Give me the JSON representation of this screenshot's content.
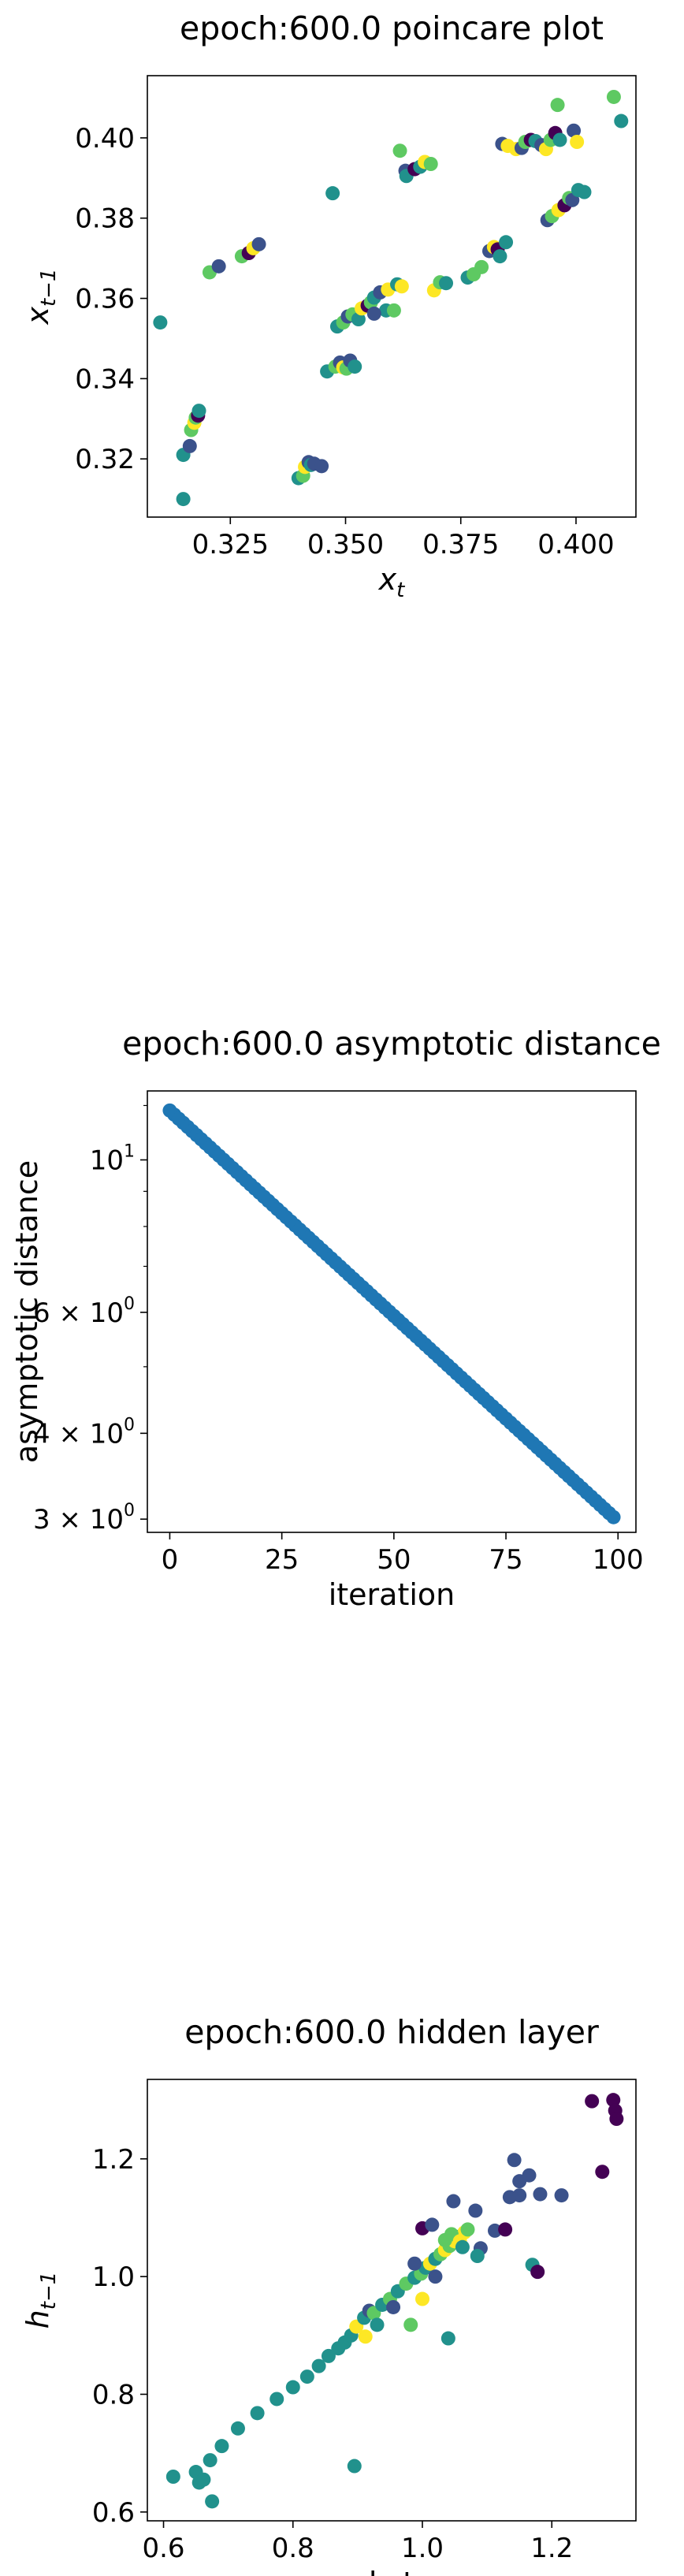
{
  "colors": {
    "viridis": [
      "#440154",
      "#3b528b",
      "#21918c",
      "#5ec962",
      "#fde725"
    ],
    "asymptotic": "#1f77b4"
  },
  "chart_data": [
    {
      "type": "scatter",
      "title": "epoch:600.0 poincare plot",
      "xlabel": "x_t",
      "ylabel": "x_{t-1}",
      "xlim": [
        0.307,
        0.413
      ],
      "ylim": [
        0.3055,
        0.4155
      ],
      "xticks": [
        0.325,
        0.35,
        0.375,
        0.4
      ],
      "xtick_labels": [
        "0.325",
        "0.350",
        "0.375",
        "0.400"
      ],
      "yticks": [
        0.32,
        0.34,
        0.36,
        0.38,
        0.4
      ],
      "ytick_labels": [
        "0.32",
        "0.34",
        "0.36",
        "0.38",
        "0.40"
      ],
      "points": [
        {
          "x": 0.3098,
          "y": 0.354,
          "c": 2
        },
        {
          "x": 0.3148,
          "y": 0.31,
          "c": 2
        },
        {
          "x": 0.3148,
          "y": 0.321,
          "c": 2
        },
        {
          "x": 0.3162,
          "y": 0.3232,
          "c": 1
        },
        {
          "x": 0.3165,
          "y": 0.3272,
          "c": 3
        },
        {
          "x": 0.3172,
          "y": 0.329,
          "c": 4
        },
        {
          "x": 0.3175,
          "y": 0.3303,
          "c": 3
        },
        {
          "x": 0.318,
          "y": 0.3308,
          "c": 0
        },
        {
          "x": 0.3182,
          "y": 0.332,
          "c": 2
        },
        {
          "x": 0.3205,
          "y": 0.3665,
          "c": 3
        },
        {
          "x": 0.3225,
          "y": 0.368,
          "c": 1
        },
        {
          "x": 0.3275,
          "y": 0.3705,
          "c": 3
        },
        {
          "x": 0.329,
          "y": 0.3713,
          "c": 0
        },
        {
          "x": 0.33,
          "y": 0.3725,
          "c": 4
        },
        {
          "x": 0.3312,
          "y": 0.3735,
          "c": 1
        },
        {
          "x": 0.3398,
          "y": 0.3152,
          "c": 2
        },
        {
          "x": 0.3408,
          "y": 0.3158,
          "c": 3
        },
        {
          "x": 0.3412,
          "y": 0.318,
          "c": 4
        },
        {
          "x": 0.342,
          "y": 0.3192,
          "c": 1
        },
        {
          "x": 0.3425,
          "y": 0.3185,
          "c": 2
        },
        {
          "x": 0.3432,
          "y": 0.3188,
          "c": 1
        },
        {
          "x": 0.3448,
          "y": 0.3182,
          "c": 1
        },
        {
          "x": 0.346,
          "y": 0.3418,
          "c": 2
        },
        {
          "x": 0.3478,
          "y": 0.343,
          "c": 3
        },
        {
          "x": 0.3488,
          "y": 0.344,
          "c": 1
        },
        {
          "x": 0.3495,
          "y": 0.3428,
          "c": 4
        },
        {
          "x": 0.3502,
          "y": 0.3425,
          "c": 3
        },
        {
          "x": 0.351,
          "y": 0.3445,
          "c": 1
        },
        {
          "x": 0.352,
          "y": 0.343,
          "c": 2
        },
        {
          "x": 0.3472,
          "y": 0.3862,
          "c": 2
        },
        {
          "x": 0.3482,
          "y": 0.353,
          "c": 2
        },
        {
          "x": 0.3495,
          "y": 0.354,
          "c": 3
        },
        {
          "x": 0.3505,
          "y": 0.3555,
          "c": 1
        },
        {
          "x": 0.3515,
          "y": 0.356,
          "c": 3
        },
        {
          "x": 0.3528,
          "y": 0.3548,
          "c": 2
        },
        {
          "x": 0.3535,
          "y": 0.3575,
          "c": 4
        },
        {
          "x": 0.3548,
          "y": 0.3582,
          "c": 0
        },
        {
          "x": 0.3555,
          "y": 0.359,
          "c": 3
        },
        {
          "x": 0.3562,
          "y": 0.3602,
          "c": 2
        },
        {
          "x": 0.3575,
          "y": 0.3615,
          "c": 1
        },
        {
          "x": 0.3588,
          "y": 0.357,
          "c": 2
        },
        {
          "x": 0.3592,
          "y": 0.3622,
          "c": 4
        },
        {
          "x": 0.3605,
          "y": 0.357,
          "c": 3
        },
        {
          "x": 0.3612,
          "y": 0.3635,
          "c": 2
        },
        {
          "x": 0.3622,
          "y": 0.363,
          "c": 4
        },
        {
          "x": 0.3562,
          "y": 0.3562,
          "c": 1
        },
        {
          "x": 0.3618,
          "y": 0.3968,
          "c": 3
        },
        {
          "x": 0.363,
          "y": 0.3918,
          "c": 1
        },
        {
          "x": 0.3632,
          "y": 0.3905,
          "c": 2
        },
        {
          "x": 0.365,
          "y": 0.3922,
          "c": 0
        },
        {
          "x": 0.3662,
          "y": 0.3928,
          "c": 2
        },
        {
          "x": 0.3672,
          "y": 0.394,
          "c": 4
        },
        {
          "x": 0.3685,
          "y": 0.3935,
          "c": 3
        },
        {
          "x": 0.3692,
          "y": 0.362,
          "c": 4
        },
        {
          "x": 0.3705,
          "y": 0.364,
          "c": 3
        },
        {
          "x": 0.3718,
          "y": 0.3638,
          "c": 2
        },
        {
          "x": 0.3765,
          "y": 0.3652,
          "c": 2
        },
        {
          "x": 0.3778,
          "y": 0.366,
          "c": 3
        },
        {
          "x": 0.3795,
          "y": 0.3678,
          "c": 3
        },
        {
          "x": 0.3812,
          "y": 0.3718,
          "c": 1
        },
        {
          "x": 0.3822,
          "y": 0.3728,
          "c": 4
        },
        {
          "x": 0.383,
          "y": 0.3722,
          "c": 0
        },
        {
          "x": 0.3848,
          "y": 0.374,
          "c": 2
        },
        {
          "x": 0.3835,
          "y": 0.3705,
          "c": 2
        },
        {
          "x": 0.384,
          "y": 0.3985,
          "c": 1
        },
        {
          "x": 0.3852,
          "y": 0.398,
          "c": 4
        },
        {
          "x": 0.387,
          "y": 0.3972,
          "c": 4
        },
        {
          "x": 0.3882,
          "y": 0.3975,
          "c": 1
        },
        {
          "x": 0.389,
          "y": 0.399,
          "c": 3
        },
        {
          "x": 0.3902,
          "y": 0.3995,
          "c": 0
        },
        {
          "x": 0.3912,
          "y": 0.3992,
          "c": 2
        },
        {
          "x": 0.3925,
          "y": 0.3982,
          "c": 1
        },
        {
          "x": 0.3935,
          "y": 0.3972,
          "c": 4
        },
        {
          "x": 0.3945,
          "y": 0.3995,
          "c": 3
        },
        {
          "x": 0.3955,
          "y": 0.4012,
          "c": 0
        },
        {
          "x": 0.3965,
          "y": 0.3995,
          "c": 2
        },
        {
          "x": 0.396,
          "y": 0.4082,
          "c": 3
        },
        {
          "x": 0.3938,
          "y": 0.3795,
          "c": 1
        },
        {
          "x": 0.3948,
          "y": 0.3805,
          "c": 3
        },
        {
          "x": 0.3962,
          "y": 0.382,
          "c": 4
        },
        {
          "x": 0.3975,
          "y": 0.3832,
          "c": 0
        },
        {
          "x": 0.3985,
          "y": 0.385,
          "c": 3
        },
        {
          "x": 0.3992,
          "y": 0.3845,
          "c": 1
        },
        {
          "x": 0.4005,
          "y": 0.387,
          "c": 2
        },
        {
          "x": 0.4018,
          "y": 0.3865,
          "c": 2
        },
        {
          "x": 0.3995,
          "y": 0.4018,
          "c": 1
        },
        {
          "x": 0.4002,
          "y": 0.399,
          "c": 4
        },
        {
          "x": 0.4082,
          "y": 0.4102,
          "c": 3
        },
        {
          "x": 0.4098,
          "y": 0.4042,
          "c": 2
        }
      ]
    },
    {
      "type": "scatter",
      "title": "epoch:600.0 asymptotic distance",
      "xlabel": "iteration",
      "ylabel": "asymptotic distance",
      "yscale": "log",
      "x_start": 0,
      "x_end": 99,
      "y_start": 11.8,
      "y_end": 3.02,
      "xlim": [
        -5,
        104
      ],
      "ylim": [
        2.87,
        12.6
      ],
      "xticks": [
        0,
        25,
        50,
        75,
        100
      ],
      "xtick_labels": [
        "0",
        "25",
        "50",
        "75",
        "100"
      ],
      "yticks": [
        10,
        6,
        4,
        3
      ],
      "ytick_labels": [
        {
          "base": "10",
          "exp": "1"
        },
        {
          "base": "6 × 10",
          "exp": "0"
        },
        {
          "base": "4 × 10",
          "exp": "0"
        },
        {
          "base": "3 × 10",
          "exp": "0"
        }
      ]
    },
    {
      "type": "scatter",
      "title": "epoch:600.0 hidden layer",
      "xlabel": "h_t",
      "ylabel": "h_{t-1}",
      "xlim": [
        0.575,
        1.33
      ],
      "ylim": [
        0.585,
        1.335
      ],
      "xticks": [
        0.6,
        0.8,
        1.0,
        1.2
      ],
      "xtick_labels": [
        "0.6",
        "0.8",
        "1.0",
        "1.2"
      ],
      "yticks": [
        0.6,
        0.8,
        1.0,
        1.2
      ],
      "ytick_labels": [
        "0.6",
        "0.8",
        "1.0",
        "1.2"
      ],
      "points": [
        {
          "x": 0.615,
          "y": 0.66,
          "c": 2
        },
        {
          "x": 0.65,
          "y": 0.668,
          "c": 2
        },
        {
          "x": 0.655,
          "y": 0.65,
          "c": 2
        },
        {
          "x": 0.662,
          "y": 0.655,
          "c": 2
        },
        {
          "x": 0.672,
          "y": 0.688,
          "c": 2
        },
        {
          "x": 0.675,
          "y": 0.618,
          "c": 2
        },
        {
          "x": 0.69,
          "y": 0.712,
          "c": 2
        },
        {
          "x": 0.715,
          "y": 0.742,
          "c": 2
        },
        {
          "x": 0.745,
          "y": 0.768,
          "c": 2
        },
        {
          "x": 0.775,
          "y": 0.792,
          "c": 2
        },
        {
          "x": 0.8,
          "y": 0.812,
          "c": 2
        },
        {
          "x": 0.822,
          "y": 0.83,
          "c": 2
        },
        {
          "x": 0.84,
          "y": 0.848,
          "c": 2
        },
        {
          "x": 0.855,
          "y": 0.865,
          "c": 2
        },
        {
          "x": 0.87,
          "y": 0.878,
          "c": 2
        },
        {
          "x": 0.88,
          "y": 0.888,
          "c": 2
        },
        {
          "x": 0.89,
          "y": 0.9,
          "c": 2
        },
        {
          "x": 0.895,
          "y": 0.678,
          "c": 2
        },
        {
          "x": 0.898,
          "y": 0.915,
          "c": 4
        },
        {
          "x": 0.91,
          "y": 0.93,
          "c": 2
        },
        {
          "x": 0.912,
          "y": 0.898,
          "c": 4
        },
        {
          "x": 0.918,
          "y": 0.942,
          "c": 1
        },
        {
          "x": 0.925,
          "y": 0.938,
          "c": 3
        },
        {
          "x": 0.93,
          "y": 0.918,
          "c": 2
        },
        {
          "x": 0.938,
          "y": 0.952,
          "c": 2
        },
        {
          "x": 0.95,
          "y": 0.962,
          "c": 3
        },
        {
          "x": 0.962,
          "y": 0.975,
          "c": 2
        },
        {
          "x": 0.975,
          "y": 0.988,
          "c": 3
        },
        {
          "x": 0.982,
          "y": 0.918,
          "c": 3
        },
        {
          "x": 0.988,
          "y": 0.998,
          "c": 2
        },
        {
          "x": 0.998,
          "y": 1.005,
          "c": 3
        },
        {
          "x": 1.005,
          "y": 1.015,
          "c": 2
        },
        {
          "x": 1.012,
          "y": 1.022,
          "c": 4
        },
        {
          "x": 1.02,
          "y": 1.03,
          "c": 2
        },
        {
          "x": 1.028,
          "y": 1.038,
          "c": 3
        },
        {
          "x": 1.035,
          "y": 1.045,
          "c": 4
        },
        {
          "x": 1.042,
          "y": 1.052,
          "c": 3
        },
        {
          "x": 1.05,
          "y": 1.06,
          "c": 4
        },
        {
          "x": 1.058,
          "y": 1.068,
          "c": 2
        },
        {
          "x": 1.065,
          "y": 1.075,
          "c": 4
        },
        {
          "x": 1.07,
          "y": 1.08,
          "c": 3
        },
        {
          "x": 1.0,
          "y": 0.962,
          "c": 4
        },
        {
          "x": 0.955,
          "y": 0.948,
          "c": 1
        },
        {
          "x": 1.02,
          "y": 1.0,
          "c": 1
        },
        {
          "x": 1.04,
          "y": 0.895,
          "c": 2
        },
        {
          "x": 0.988,
          "y": 1.022,
          "c": 1
        },
        {
          "x": 1.0,
          "y": 1.082,
          "c": 0
        },
        {
          "x": 1.015,
          "y": 1.088,
          "c": 1
        },
        {
          "x": 1.048,
          "y": 1.128,
          "c": 1
        },
        {
          "x": 1.082,
          "y": 1.112,
          "c": 1
        },
        {
          "x": 1.09,
          "y": 1.048,
          "c": 1
        },
        {
          "x": 1.085,
          "y": 1.035,
          "c": 2
        },
        {
          "x": 1.112,
          "y": 1.078,
          "c": 1
        },
        {
          "x": 1.128,
          "y": 1.08,
          "c": 0
        },
        {
          "x": 1.135,
          "y": 1.135,
          "c": 1
        },
        {
          "x": 1.142,
          "y": 1.198,
          "c": 1
        },
        {
          "x": 1.15,
          "y": 1.138,
          "c": 1
        },
        {
          "x": 1.165,
          "y": 1.172,
          "c": 1
        },
        {
          "x": 1.17,
          "y": 1.02,
          "c": 2
        },
        {
          "x": 1.178,
          "y": 1.008,
          "c": 0
        },
        {
          "x": 1.182,
          "y": 1.14,
          "c": 1
        },
        {
          "x": 1.215,
          "y": 1.138,
          "c": 1
        },
        {
          "x": 1.262,
          "y": 1.298,
          "c": 0
        },
        {
          "x": 1.278,
          "y": 1.178,
          "c": 0
        },
        {
          "x": 1.295,
          "y": 1.3,
          "c": 0
        },
        {
          "x": 1.298,
          "y": 1.282,
          "c": 0
        },
        {
          "x": 1.3,
          "y": 1.268,
          "c": 0
        },
        {
          "x": 1.15,
          "y": 1.162,
          "c": 1
        },
        {
          "x": 1.035,
          "y": 1.062,
          "c": 3
        },
        {
          "x": 1.045,
          "y": 1.072,
          "c": 3
        },
        {
          "x": 1.058,
          "y": 1.06,
          "c": 4
        },
        {
          "x": 1.062,
          "y": 1.05,
          "c": 2
        }
      ]
    }
  ]
}
